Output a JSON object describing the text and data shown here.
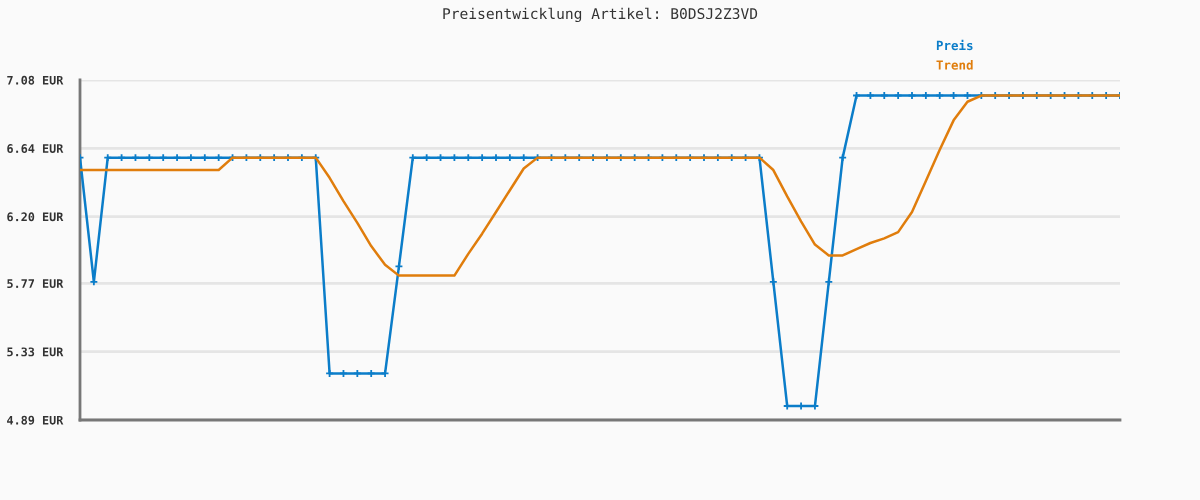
{
  "chart_data": {
    "type": "line",
    "title": "Preisentwicklung Artikel: B0DSJ2Z3VD",
    "categories": [
      null,
      null,
      null,
      null,
      null,
      null,
      null,
      null,
      null,
      null,
      null,
      null,
      null,
      null,
      null,
      null,
      null,
      null,
      null,
      null,
      null,
      null,
      null,
      null,
      null,
      null,
      null,
      null,
      null,
      null,
      null,
      null,
      null,
      null,
      null,
      null,
      null,
      null,
      null,
      null,
      null,
      null,
      null,
      null,
      null,
      null,
      null,
      null,
      null,
      null,
      null,
      null,
      null,
      null,
      null,
      null,
      null,
      null,
      null,
      null,
      null,
      null,
      null,
      null,
      null,
      null,
      null,
      null,
      null,
      null,
      null,
      null,
      null,
      null,
      null,
      null
    ],
    "series": [
      {
        "name": "Preis",
        "color": "#0b7dc9",
        "marker": "cross",
        "values": [
          6.58,
          5.78,
          6.58,
          6.58,
          6.58,
          6.58,
          6.58,
          6.58,
          6.58,
          6.58,
          6.58,
          6.58,
          6.58,
          6.58,
          6.58,
          6.58,
          6.58,
          6.58,
          5.19,
          5.19,
          5.19,
          5.19,
          5.19,
          5.88,
          6.58,
          6.58,
          6.58,
          6.58,
          6.58,
          6.58,
          6.58,
          6.58,
          6.58,
          6.58,
          6.58,
          6.58,
          6.58,
          6.58,
          6.58,
          6.58,
          6.58,
          6.58,
          6.58,
          6.58,
          6.58,
          6.58,
          6.58,
          6.58,
          6.58,
          6.58,
          5.78,
          4.98,
          4.98,
          4.98,
          5.78,
          6.58,
          6.98,
          6.98,
          6.98,
          6.98,
          6.98,
          6.98,
          6.98,
          6.98,
          6.98,
          6.98,
          6.98,
          6.98,
          6.98,
          6.98,
          6.98,
          6.98,
          6.98,
          6.98,
          6.98,
          6.98
        ]
      },
      {
        "name": "Trend",
        "color": "#e07d0c",
        "values": [
          6.5,
          6.5,
          6.5,
          6.5,
          6.5,
          6.5,
          6.5,
          6.5,
          6.5,
          6.5,
          6.5,
          6.58,
          6.58,
          6.58,
          6.58,
          6.58,
          6.58,
          6.58,
          6.45,
          6.3,
          6.16,
          6.01,
          5.89,
          5.82,
          5.82,
          5.82,
          5.82,
          5.82,
          5.96,
          6.09,
          6.23,
          6.37,
          6.51,
          6.58,
          6.58,
          6.58,
          6.58,
          6.58,
          6.58,
          6.58,
          6.58,
          6.58,
          6.58,
          6.58,
          6.58,
          6.58,
          6.58,
          6.58,
          6.58,
          6.58,
          6.5,
          6.33,
          6.17,
          6.02,
          5.95,
          5.95,
          5.99,
          6.03,
          6.06,
          6.1,
          6.23,
          6.43,
          6.63,
          6.82,
          6.94,
          6.98,
          6.98,
          6.98,
          6.98,
          6.98,
          6.98,
          6.98,
          6.98,
          6.98,
          6.98,
          6.98
        ]
      }
    ],
    "ylim": [
      4.89,
      7.08
    ],
    "yticks": [
      {
        "value": 4.89,
        "label": "4.89 EUR"
      },
      {
        "value": 5.33,
        "label": "5.33 EUR"
      },
      {
        "value": 5.77,
        "label": "5.77 EUR"
      },
      {
        "value": 6.2,
        "label": "6.20 EUR"
      },
      {
        "value": 6.64,
        "label": "6.64 EUR"
      },
      {
        "value": 7.08,
        "label": "7.08 EUR"
      }
    ],
    "grid": "y",
    "legend": "top right",
    "line_style": "solid"
  }
}
